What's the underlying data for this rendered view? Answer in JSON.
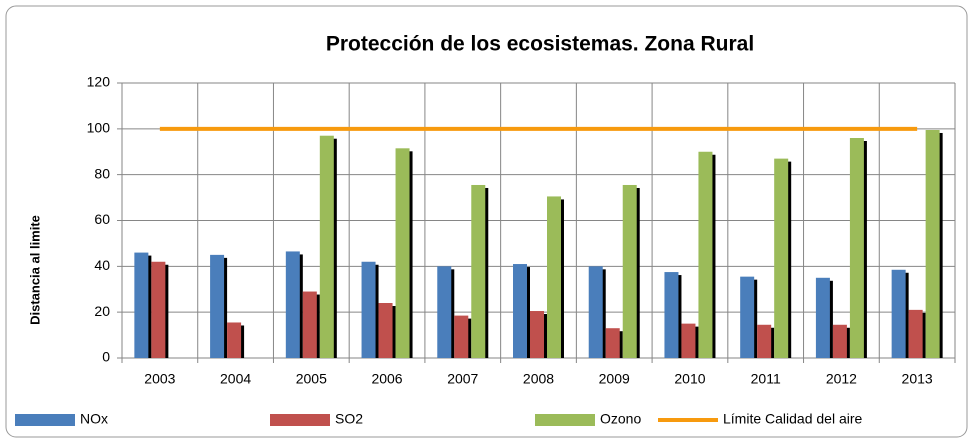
{
  "chart_data": {
    "type": "bar",
    "title": "Protección de los ecosistemas. Zona Rural",
    "y_label": "Distancia al limite",
    "categories": [
      "2003",
      "2004",
      "2005",
      "2006",
      "2007",
      "2008",
      "2009",
      "2010",
      "2011",
      "2012",
      "2013"
    ],
    "series": [
      {
        "name": "NOx",
        "color": "#4a7ebb",
        "values": [
          46,
          45,
          46.5,
          42,
          40,
          41,
          40,
          37.5,
          35.5,
          35,
          38.5
        ]
      },
      {
        "name": "SO2",
        "color": "#c0504d",
        "values": [
          42,
          15.5,
          29,
          24,
          18.5,
          20.5,
          13,
          15,
          14.5,
          14.5,
          21
        ]
      },
      {
        "name": "Ozono",
        "color": "#9bbb59",
        "values": [
          null,
          null,
          97,
          91.5,
          75.5,
          70.5,
          75.5,
          90,
          87,
          96,
          99.5
        ]
      },
      {
        "name": "Límite Calidad del aire",
        "color": "#f79a0e",
        "type": "line",
        "values": [
          100,
          100,
          100,
          100,
          100,
          100,
          100,
          100,
          100,
          100,
          100
        ]
      }
    ],
    "ylim": [
      0,
      120
    ],
    "yticks": [
      0,
      20,
      40,
      60,
      80,
      100,
      120
    ],
    "grid": true,
    "legend": "bottom"
  }
}
